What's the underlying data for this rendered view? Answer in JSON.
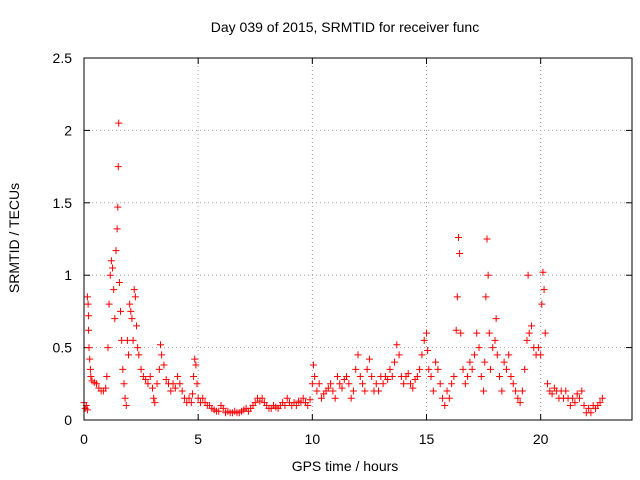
{
  "chart_data": {
    "type": "scatter",
    "title": "Day 039 of 2015, SRMTID for receiver func",
    "xlabel": "GPS time / hours",
    "ylabel": "SRMTID / TECUs",
    "xlim": [
      0,
      24
    ],
    "ylim": [
      0,
      2.5
    ],
    "xticks": [
      0,
      5,
      10,
      15,
      20
    ],
    "xtick_labels": [
      "0",
      "5",
      "10",
      "15",
      "20"
    ],
    "yticks": [
      0,
      0.5,
      1,
      1.5,
      2,
      2.5
    ],
    "ytick_labels": [
      "0",
      "0.5",
      "1",
      "1.5",
      "2",
      "2.5"
    ],
    "grid": true,
    "marker": "+",
    "color": "#ff0000",
    "series": [
      {
        "name": "SRMTID",
        "points": [
          [
            0.0,
            0.12
          ],
          [
            0.05,
            0.08
          ],
          [
            0.1,
            0.1
          ],
          [
            0.15,
            0.07
          ],
          [
            0.15,
            0.85
          ],
          [
            0.18,
            0.8
          ],
          [
            0.2,
            0.72
          ],
          [
            0.2,
            0.62
          ],
          [
            0.22,
            0.5
          ],
          [
            0.25,
            0.42
          ],
          [
            0.28,
            0.35
          ],
          [
            0.3,
            0.3
          ],
          [
            0.35,
            0.27
          ],
          [
            0.45,
            0.26
          ],
          [
            0.55,
            0.25
          ],
          [
            0.65,
            0.22
          ],
          [
            0.75,
            0.2
          ],
          [
            0.85,
            0.2
          ],
          [
            0.95,
            0.22
          ],
          [
            1.0,
            0.3
          ],
          [
            1.05,
            0.5
          ],
          [
            1.1,
            0.8
          ],
          [
            1.15,
            1.0
          ],
          [
            1.2,
            1.1
          ],
          [
            1.25,
            1.05
          ],
          [
            1.3,
            0.9
          ],
          [
            1.35,
            0.7
          ],
          [
            1.4,
            1.17
          ],
          [
            1.45,
            1.32
          ],
          [
            1.48,
            1.47
          ],
          [
            1.5,
            1.75
          ],
          [
            1.52,
            2.05
          ],
          [
            1.55,
            0.95
          ],
          [
            1.6,
            0.75
          ],
          [
            1.65,
            0.55
          ],
          [
            1.7,
            0.35
          ],
          [
            1.75,
            0.25
          ],
          [
            1.8,
            0.15
          ],
          [
            1.85,
            0.1
          ],
          [
            1.9,
            0.55
          ],
          [
            1.95,
            0.45
          ],
          [
            2.0,
            0.8
          ],
          [
            2.05,
            0.75
          ],
          [
            2.1,
            0.7
          ],
          [
            2.15,
            0.55
          ],
          [
            2.2,
            0.9
          ],
          [
            2.25,
            0.85
          ],
          [
            2.3,
            0.65
          ],
          [
            2.35,
            0.5
          ],
          [
            2.4,
            0.45
          ],
          [
            2.5,
            0.35
          ],
          [
            2.6,
            0.3
          ],
          [
            2.7,
            0.28
          ],
          [
            2.8,
            0.25
          ],
          [
            2.9,
            0.3
          ],
          [
            3.0,
            0.22
          ],
          [
            3.05,
            0.15
          ],
          [
            3.1,
            0.12
          ],
          [
            3.2,
            0.25
          ],
          [
            3.3,
            0.35
          ],
          [
            3.35,
            0.52
          ],
          [
            3.4,
            0.45
          ],
          [
            3.5,
            0.38
          ],
          [
            3.6,
            0.28
          ],
          [
            3.7,
            0.25
          ],
          [
            3.8,
            0.2
          ],
          [
            3.9,
            0.25
          ],
          [
            4.0,
            0.22
          ],
          [
            4.1,
            0.3
          ],
          [
            4.2,
            0.25
          ],
          [
            4.3,
            0.2
          ],
          [
            4.4,
            0.15
          ],
          [
            4.5,
            0.12
          ],
          [
            4.6,
            0.15
          ],
          [
            4.7,
            0.12
          ],
          [
            4.75,
            0.18
          ],
          [
            4.8,
            0.3
          ],
          [
            4.85,
            0.42
          ],
          [
            4.9,
            0.38
          ],
          [
            4.95,
            0.25
          ],
          [
            5.0,
            0.15
          ],
          [
            5.1,
            0.12
          ],
          [
            5.2,
            0.15
          ],
          [
            5.3,
            0.12
          ],
          [
            5.4,
            0.1
          ],
          [
            5.5,
            0.1
          ],
          [
            5.6,
            0.08
          ],
          [
            5.7,
            0.07
          ],
          [
            5.8,
            0.06
          ],
          [
            5.9,
            0.06
          ],
          [
            6.0,
            0.1
          ],
          [
            6.1,
            0.08
          ],
          [
            6.2,
            0.05
          ],
          [
            6.3,
            0.06
          ],
          [
            6.4,
            0.05
          ],
          [
            6.5,
            0.05
          ],
          [
            6.6,
            0.06
          ],
          [
            6.7,
            0.05
          ],
          [
            6.8,
            0.05
          ],
          [
            6.9,
            0.06
          ],
          [
            7.0,
            0.07
          ],
          [
            7.1,
            0.08
          ],
          [
            7.2,
            0.06
          ],
          [
            7.3,
            0.08
          ],
          [
            7.4,
            0.1
          ],
          [
            7.5,
            0.12
          ],
          [
            7.6,
            0.15
          ],
          [
            7.7,
            0.13
          ],
          [
            7.8,
            0.15
          ],
          [
            7.9,
            0.12
          ],
          [
            8.0,
            0.1
          ],
          [
            8.1,
            0.08
          ],
          [
            8.2,
            0.08
          ],
          [
            8.3,
            0.1
          ],
          [
            8.4,
            0.09
          ],
          [
            8.5,
            0.08
          ],
          [
            8.6,
            0.1
          ],
          [
            8.7,
            0.12
          ],
          [
            8.8,
            0.1
          ],
          [
            8.9,
            0.15
          ],
          [
            9.0,
            0.12
          ],
          [
            9.1,
            0.1
          ],
          [
            9.2,
            0.12
          ],
          [
            9.3,
            0.1
          ],
          [
            9.4,
            0.13
          ],
          [
            9.5,
            0.12
          ],
          [
            9.6,
            0.15
          ],
          [
            9.7,
            0.12
          ],
          [
            9.8,
            0.1
          ],
          [
            9.9,
            0.14
          ],
          [
            10.0,
            0.25
          ],
          [
            10.05,
            0.38
          ],
          [
            10.1,
            0.3
          ],
          [
            10.2,
            0.2
          ],
          [
            10.3,
            0.25
          ],
          [
            10.4,
            0.15
          ],
          [
            10.5,
            0.18
          ],
          [
            10.6,
            0.2
          ],
          [
            10.7,
            0.22
          ],
          [
            10.8,
            0.25
          ],
          [
            10.9,
            0.2
          ],
          [
            11.0,
            0.15
          ],
          [
            11.1,
            0.3
          ],
          [
            11.2,
            0.25
          ],
          [
            11.3,
            0.22
          ],
          [
            11.4,
            0.28
          ],
          [
            11.5,
            0.3
          ],
          [
            11.6,
            0.25
          ],
          [
            11.7,
            0.15
          ],
          [
            11.8,
            0.2
          ],
          [
            11.9,
            0.35
          ],
          [
            12.0,
            0.45
          ],
          [
            12.1,
            0.3
          ],
          [
            12.2,
            0.25
          ],
          [
            12.3,
            0.2
          ],
          [
            12.4,
            0.35
          ],
          [
            12.5,
            0.42
          ],
          [
            12.6,
            0.3
          ],
          [
            12.7,
            0.2
          ],
          [
            12.8,
            0.25
          ],
          [
            12.9,
            0.2
          ],
          [
            13.0,
            0.3
          ],
          [
            13.1,
            0.25
          ],
          [
            13.2,
            0.3
          ],
          [
            13.3,
            0.28
          ],
          [
            13.4,
            0.35
          ],
          [
            13.5,
            0.3
          ],
          [
            13.6,
            0.4
          ],
          [
            13.7,
            0.52
          ],
          [
            13.8,
            0.45
          ],
          [
            13.9,
            0.3
          ],
          [
            14.0,
            0.25
          ],
          [
            14.1,
            0.3
          ],
          [
            14.2,
            0.32
          ],
          [
            14.3,
            0.25
          ],
          [
            14.4,
            0.22
          ],
          [
            14.5,
            0.28
          ],
          [
            14.6,
            0.3
          ],
          [
            14.7,
            0.35
          ],
          [
            14.8,
            0.45
          ],
          [
            14.9,
            0.55
          ],
          [
            15.0,
            0.6
          ],
          [
            15.05,
            0.48
          ],
          [
            15.1,
            0.35
          ],
          [
            15.2,
            0.3
          ],
          [
            15.3,
            0.2
          ],
          [
            15.4,
            0.4
          ],
          [
            15.5,
            0.35
          ],
          [
            15.6,
            0.25
          ],
          [
            15.7,
            0.15
          ],
          [
            15.8,
            0.1
          ],
          [
            15.9,
            0.2
          ],
          [
            16.0,
            0.15
          ],
          [
            16.1,
            0.25
          ],
          [
            16.2,
            0.3
          ],
          [
            16.3,
            0.62
          ],
          [
            16.35,
            0.85
          ],
          [
            16.4,
            1.26
          ],
          [
            16.45,
            1.15
          ],
          [
            16.5,
            0.6
          ],
          [
            16.6,
            0.35
          ],
          [
            16.7,
            0.25
          ],
          [
            16.8,
            0.3
          ],
          [
            16.9,
            0.4
          ],
          [
            17.0,
            0.35
          ],
          [
            17.1,
            0.45
          ],
          [
            17.2,
            0.6
          ],
          [
            17.3,
            0.5
          ],
          [
            17.4,
            0.3
          ],
          [
            17.5,
            0.2
          ],
          [
            17.55,
            0.4
          ],
          [
            17.6,
            0.85
          ],
          [
            17.65,
            1.25
          ],
          [
            17.7,
            1.0
          ],
          [
            17.75,
            0.6
          ],
          [
            17.8,
            0.35
          ],
          [
            17.9,
            0.5
          ],
          [
            18.0,
            0.55
          ],
          [
            18.05,
            0.7
          ],
          [
            18.1,
            0.45
          ],
          [
            18.2,
            0.3
          ],
          [
            18.3,
            0.2
          ],
          [
            18.4,
            0.4
          ],
          [
            18.5,
            0.35
          ],
          [
            18.6,
            0.45
          ],
          [
            18.7,
            0.3
          ],
          [
            18.8,
            0.25
          ],
          [
            18.9,
            0.2
          ],
          [
            19.0,
            0.15
          ],
          [
            19.1,
            0.12
          ],
          [
            19.2,
            0.2
          ],
          [
            19.3,
            0.35
          ],
          [
            19.4,
            0.55
          ],
          [
            19.45,
            1.0
          ],
          [
            19.5,
            0.6
          ],
          [
            19.6,
            0.65
          ],
          [
            19.7,
            0.5
          ],
          [
            19.8,
            0.45
          ],
          [
            19.9,
            0.5
          ],
          [
            20.0,
            0.45
          ],
          [
            20.05,
            0.8
          ],
          [
            20.1,
            1.02
          ],
          [
            20.15,
            0.9
          ],
          [
            20.2,
            0.6
          ],
          [
            20.3,
            0.25
          ],
          [
            20.4,
            0.2
          ],
          [
            20.5,
            0.18
          ],
          [
            20.6,
            0.22
          ],
          [
            20.7,
            0.2
          ],
          [
            20.8,
            0.15
          ],
          [
            20.9,
            0.2
          ],
          [
            21.0,
            0.15
          ],
          [
            21.1,
            0.2
          ],
          [
            21.2,
            0.15
          ],
          [
            21.3,
            0.1
          ],
          [
            21.4,
            0.15
          ],
          [
            21.5,
            0.12
          ],
          [
            21.6,
            0.18
          ],
          [
            21.7,
            0.15
          ],
          [
            21.8,
            0.2
          ],
          [
            21.9,
            0.1
          ],
          [
            22.0,
            0.05
          ],
          [
            22.1,
            0.08
          ],
          [
            22.2,
            0.05
          ],
          [
            22.3,
            0.1
          ],
          [
            22.4,
            0.08
          ],
          [
            22.5,
            0.1
          ],
          [
            22.6,
            0.12
          ],
          [
            22.7,
            0.15
          ]
        ]
      }
    ]
  }
}
